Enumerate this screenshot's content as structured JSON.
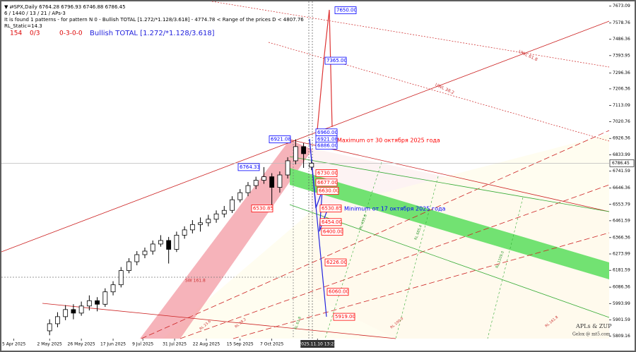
{
  "header": {
    "symbol_line": "▼ ⇄SPX,Daily  6764.28 6796.93 6746.88 6786.45",
    "info_line": "6 / 1440 / 13 / 21 / APs-3",
    "pattern_line": "It is found 1 patterns  -  for pattern N 0 - Bullish TOTAL [1.272/*1.128/3.618] - 4774.78 < Range of the prices D < 4807.76",
    "static_line": "RL_Static=14.3",
    "counter": "154",
    "ratio": "0/3",
    "code": "0-3-0-0",
    "pattern_name": "Bullish TOTAL [1.272/*1.128/3.618]"
  },
  "chart_data": {
    "type": "candlestick",
    "x": [
      18,
      22,
      26,
      30,
      34,
      38,
      42,
      46,
      50,
      54,
      58,
      62,
      66,
      70,
      74,
      78,
      82,
      86,
      90,
      94,
      98,
      102,
      106,
      110,
      114,
      118,
      122,
      126,
      130,
      134,
      138,
      142,
      146,
      150
    ],
    "open": [
      5840,
      5880,
      5920,
      5960,
      5940,
      5980,
      6010,
      5990,
      6060,
      6100,
      6180,
      6230,
      6270,
      6290,
      6330,
      6350,
      6300,
      6380,
      6410,
      6440,
      6450,
      6470,
      6500,
      6520,
      6580,
      6620,
      6660,
      6690,
      6710,
      6650,
      6720,
      6800,
      6880,
      6764.28
    ],
    "high": [
      5905,
      5945,
      5985,
      5990,
      6005,
      6040,
      6030,
      6080,
      6120,
      6200,
      6250,
      6290,
      6310,
      6350,
      6380,
      6370,
      6400,
      6430,
      6465,
      6480,
      6495,
      6520,
      6545,
      6600,
      6640,
      6680,
      6710,
      6764.33,
      6730,
      6740,
      6820,
      6921.08,
      6900,
      6796.93
    ],
    "low": [
      5815,
      5860,
      5900,
      5905,
      5925,
      5955,
      5950,
      5975,
      6040,
      6085,
      6165,
      6210,
      6250,
      6270,
      6315,
      6220,
      6285,
      6360,
      6390,
      6400,
      6430,
      6450,
      6480,
      6505,
      6565,
      6600,
      6640,
      6670,
      6530.85,
      6620,
      6700,
      6780,
      6760,
      6746.88
    ],
    "close": [
      5880,
      5920,
      5960,
      5940,
      5980,
      6010,
      5990,
      6060,
      6100,
      6180,
      6230,
      6270,
      6290,
      6330,
      6350,
      6300,
      6380,
      6410,
      6440,
      6450,
      6470,
      6500,
      6520,
      6580,
      6620,
      6660,
      6690,
      6710,
      6650,
      6720,
      6800,
      6880,
      6840,
      6786.45
    ],
    "up_color": "#ffffff",
    "down_color": "#000000",
    "wick_color": "#000000",
    "xlim": [
      -7,
      300
    ],
    "xticks": [
      {
        "value": 0,
        "label": "5 Apr 2025"
      },
      {
        "value": 18,
        "label": "2 May 2025"
      },
      {
        "value": 34,
        "label": "26 May 2025"
      },
      {
        "value": 50,
        "label": "17 Jun 2025"
      },
      {
        "value": 65,
        "label": "9 Jul 2025"
      },
      {
        "value": 81,
        "label": "31 Jul 2025"
      },
      {
        "value": 97,
        "label": "22 Aug 2025"
      },
      {
        "value": 114,
        "label": "15 Sep 2025"
      },
      {
        "value": 130,
        "label": "7 Oct 2025"
      },
      {
        "value": 153,
        "label": "2025.11.10 13:23"
      }
    ],
    "ylim": [
      5800,
      7680
    ],
    "yticks": [
      7673.09,
      7578.76,
      7486.36,
      7393.95,
      7296.36,
      7206.36,
      7113.09,
      7020.76,
      6926.36,
      6833.99,
      6741.59,
      6646.36,
      6553.79,
      6461.59,
      6366.36,
      6273.99,
      6181.59,
      6086.36,
      5993.99,
      5901.59,
      5809.16
    ],
    "last_price": {
      "value": 6786.45,
      "label": "6786.45"
    },
    "price_labels": [
      {
        "value": 7650,
        "label": "7650.00",
        "color": "#0000ff"
      },
      {
        "value": 7365,
        "label": "7365.00",
        "color": "#0000ff"
      },
      {
        "value": 6960,
        "label": "6960.00",
        "color": "#0000ff"
      },
      {
        "value": 6921.08,
        "label": "6921.08",
        "color": "#0000ff"
      },
      {
        "value": 6886,
        "label": "6886.00",
        "color": "#0000ff"
      },
      {
        "value": 6730,
        "label": "6730.00",
        "color": "#ff0000"
      },
      {
        "value": 6677,
        "label": "6677.00",
        "color": "#ff0000"
      },
      {
        "value": 6630,
        "label": "6630.00",
        "color": "#ff0000"
      },
      {
        "value": 6530.85,
        "label": "6530.85",
        "color": "#ff0000"
      },
      {
        "value": 6454,
        "label": "6454.00",
        "color": "#ff0000"
      },
      {
        "value": 6400,
        "label": "6400.00",
        "color": "#ff0000"
      },
      {
        "value": 6226,
        "label": "6226.00",
        "color": "#ff0000"
      },
      {
        "value": 6060,
        "label": "6060.00",
        "color": "#ff0000"
      },
      {
        "value": 5919,
        "label": "5919.00",
        "color": "#ff0000"
      },
      {
        "value": 6921.08,
        "label": "6921.08",
        "color": "#0000ff"
      },
      {
        "value": 6764.33,
        "label": "6764.33",
        "color": "#0000ff"
      },
      {
        "value": 6530.85,
        "label": "6530.85",
        "color": "#ff0000"
      }
    ],
    "annotations": [
      {
        "text": "Maximum от 30 октября 2025 года",
        "color": "#ff0000"
      },
      {
        "text": "Minimum от 17 октября 2025 года",
        "color": "#0000ff"
      },
      {
        "text": "UWL 61.8",
        "color": "#cc3333"
      },
      {
        "text": "UWL 38.2",
        "color": "#cc3333"
      },
      {
        "text": "RL 453.8",
        "color": "#339933"
      },
      {
        "text": "RL 685.4",
        "color": "#339933"
      },
      {
        "text": "RL 1109.0",
        "color": "#339933"
      },
      {
        "text": "RL 23.6",
        "color": "#cc3333"
      },
      {
        "text": "RL 38.2",
        "color": "#cc3333"
      },
      {
        "text": "RL 61.8",
        "color": "#339933"
      },
      {
        "text": "RL 100.0",
        "color": "#cc3333"
      },
      {
        "text": "RL 161.8",
        "color": "#cc3333"
      },
      {
        "text": "SW 161.8",
        "color": "#cc3333"
      },
      {
        "text": "APLs & ZUP",
        "color": "#333333"
      },
      {
        "text": "Gelox @ mt5.com",
        "color": "#333333"
      }
    ]
  }
}
